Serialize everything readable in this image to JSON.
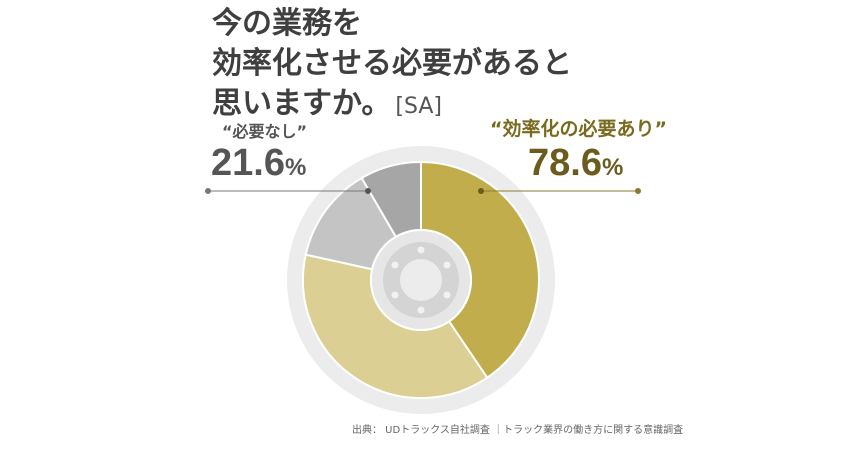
{
  "title": {
    "line1": "今の業務を",
    "line2": "効率化させる必要があると",
    "line3": "思いますか。",
    "tag": "[SA]"
  },
  "labels": {
    "no_label": "“必要なし”",
    "no_value": "21.6",
    "no_pct": "%",
    "yes_label": "“効率化の必要あり”",
    "yes_value": "78.6",
    "yes_pct": "%"
  },
  "source": "出典： UDトラックス自社調査 ｜トラック業界の働き方に関する意識調査",
  "colors": {
    "yes_dark": "#c2ad4d",
    "yes_light": "#dccf93",
    "no_light": "#c4c4c4",
    "no_dark": "#a6a6a6",
    "ring": "#ececec"
  },
  "chart_data": {
    "type": "pie",
    "title": "",
    "slices": [
      {
        "value": 40.6,
        "color": "#c2ad4d",
        "group": "効率化の必要あり"
      },
      {
        "value": 38.0,
        "color": "#dccf93",
        "group": "効率化の必要あり"
      },
      {
        "value": 13.2,
        "color": "#c4c4c4",
        "group": "必要なし"
      },
      {
        "value": 8.4,
        "color": "#a6a6a6",
        "group": "必要なし"
      }
    ],
    "totals": {
      "効率化の必要あり": 78.6,
      "必要なし": 21.6
    }
  }
}
